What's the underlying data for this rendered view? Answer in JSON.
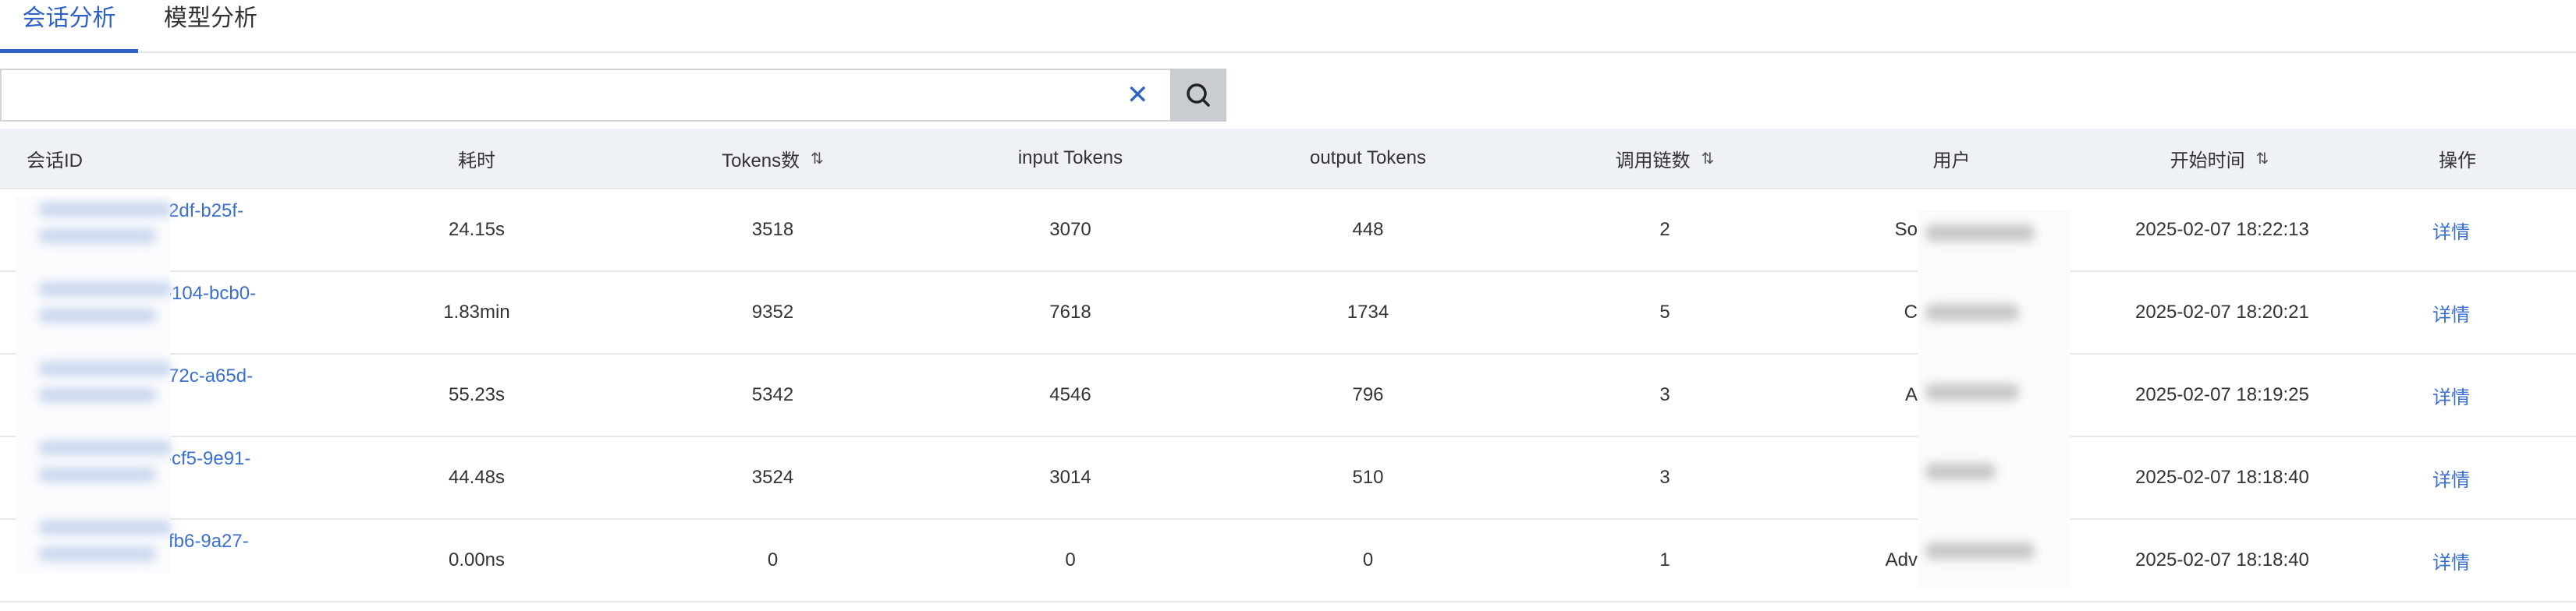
{
  "tabs": [
    {
      "label": "会话分析",
      "active": true
    },
    {
      "label": "模型分析",
      "active": false
    }
  ],
  "search": {
    "value": "",
    "placeholder": "",
    "clear_icon": "close-icon",
    "search_icon": "search-icon"
  },
  "colors": {
    "accent": "#2f62c8",
    "link": "#3a6fd0",
    "header_bg": "#eef1f6",
    "search_button_bg": "#c9ccd1"
  },
  "table": {
    "columns": [
      {
        "label": "会话ID",
        "sortable": false
      },
      {
        "label": "耗时",
        "sortable": false
      },
      {
        "label": "Tokens数",
        "sortable": true
      },
      {
        "label": "input Tokens",
        "sortable": false
      },
      {
        "label": "output Tokens",
        "sortable": false
      },
      {
        "label": "调用链数",
        "sortable": true
      },
      {
        "label": "用户",
        "sortable": false
      },
      {
        "label": "开始时间",
        "sortable": true
      },
      {
        "label": "操作",
        "sortable": false
      }
    ],
    "sort_icon": "⇅",
    "rows": [
      {
        "id_visible": "2df-b25f-",
        "duration": "24.15s",
        "tokens": "3518",
        "input": "3070",
        "output": "448",
        "chains": "2",
        "user_visible": "So",
        "start": "2025-02-07 18:22:13",
        "action": "详情"
      },
      {
        "id_visible": "-104-bcb0-",
        "duration": "1.83min",
        "tokens": "9352",
        "input": "7618",
        "output": "1734",
        "chains": "5",
        "user_visible": "C",
        "start": "2025-02-07 18:20:21",
        "action": "详情"
      },
      {
        "id_visible": "72c-a65d-",
        "duration": "55.23s",
        "tokens": "5342",
        "input": "4546",
        "output": "796",
        "chains": "3",
        "user_visible": "A",
        "start": "2025-02-07 18:19:25",
        "action": "详情"
      },
      {
        "id_visible": "-cf5-9e91-",
        "duration": "44.48s",
        "tokens": "3524",
        "input": "3014",
        "output": "510",
        "chains": "3",
        "user_visible": "",
        "start": "2025-02-07 18:18:40",
        "action": "详情"
      },
      {
        "id_visible": "fb6-9a27-",
        "duration": "0.00ns",
        "tokens": "0",
        "input": "0",
        "output": "0",
        "chains": "1",
        "user_visible": "Adv",
        "start": "2025-02-07 18:18:40",
        "action": "详情"
      }
    ]
  }
}
